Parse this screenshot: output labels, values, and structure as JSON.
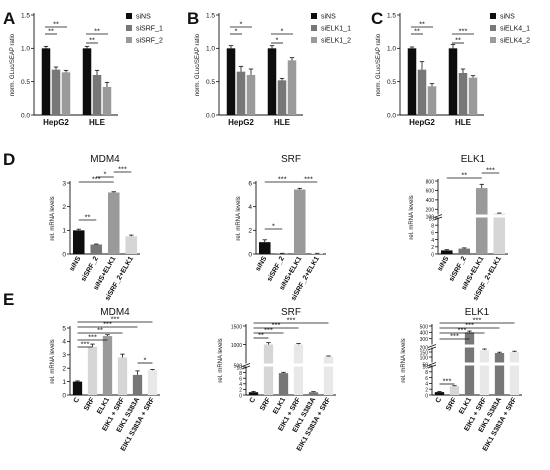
{
  "colors": {
    "black": "#0d0d0d",
    "dark_gray": "#777777",
    "mid_gray": "#9a9a9a",
    "light_gray": "#d6d6d6",
    "lighter_gray": "#e8e8e8"
  },
  "panel_letters": [
    "A",
    "B",
    "C",
    "D",
    "E"
  ],
  "chart_data": [
    {
      "panel": "A",
      "type": "bar",
      "title": "",
      "ylabel": "norm. GLuc/SEAP ratio",
      "categories": [
        "HepG2",
        "HLE"
      ],
      "ylim": [
        0,
        1.5
      ],
      "yticks": [
        "0.0",
        "0.5",
        "1.0",
        "1.5"
      ],
      "legend_position": "right",
      "series": [
        {
          "name": "siNS",
          "values": [
            1.0,
            1.0
          ],
          "err": [
            0.03,
            0.03
          ]
        },
        {
          "name": "siSRF_1",
          "values": [
            0.68,
            0.6
          ],
          "err": [
            0.04,
            0.07
          ]
        },
        {
          "name": "siSRF_2",
          "values": [
            0.64,
            0.42
          ],
          "err": [
            0.03,
            0.07
          ]
        }
      ],
      "significance": [
        "**",
        "**",
        "**",
        "**"
      ]
    },
    {
      "panel": "B",
      "type": "bar",
      "title": "",
      "ylabel": "norm. GLuc/SEAP ratio",
      "categories": [
        "HepG2",
        "HLE"
      ],
      "ylim": [
        0,
        1.5
      ],
      "yticks": [
        "0.0",
        "0.5",
        "1.0",
        "1.5"
      ],
      "legend_position": "right",
      "series": [
        {
          "name": "siNS",
          "values": [
            1.0,
            1.0
          ],
          "err": [
            0.04,
            0.04
          ]
        },
        {
          "name": "siELK1_1",
          "values": [
            0.65,
            0.52
          ],
          "err": [
            0.08,
            0.03
          ]
        },
        {
          "name": "siELK1_2",
          "values": [
            0.6,
            0.82
          ],
          "err": [
            0.09,
            0.04
          ]
        }
      ],
      "significance": [
        "*",
        "*",
        "*",
        "*"
      ]
    },
    {
      "panel": "C",
      "type": "bar",
      "title": "",
      "ylabel": "norm. GLuc/SEAP ratio",
      "categories": [
        "HepG2",
        "HLE"
      ],
      "ylim": [
        0,
        1.5
      ],
      "yticks": [
        "0.0",
        "0.5",
        "1.0",
        "1.5"
      ],
      "legend_position": "right",
      "series": [
        {
          "name": "siNS",
          "values": [
            1.0,
            1.0
          ],
          "err": [
            0.02,
            0.06
          ]
        },
        {
          "name": "siELK4_1",
          "values": [
            0.68,
            0.63
          ],
          "err": [
            0.12,
            0.06
          ]
        },
        {
          "name": "siELK4_2",
          "values": [
            0.43,
            0.56
          ],
          "err": [
            0.04,
            0.03
          ]
        }
      ],
      "significance": [
        "**",
        "**",
        "**",
        "***"
      ]
    },
    {
      "panel": "D",
      "type": "bar",
      "title": "MDM4",
      "ylabel": "rel. mRNA levels",
      "categories": [
        "siNS",
        "siSRF_2",
        "siNS+ELK1",
        "siSRF_2+ELK1"
      ],
      "values": [
        1.0,
        0.4,
        2.6,
        0.75
      ],
      "err": [
        0.05,
        0.02,
        0.03,
        0.05
      ],
      "ylim": [
        0,
        3
      ],
      "yticks": [
        "0",
        "1",
        "2",
        "3"
      ],
      "significance": [
        "**",
        "***",
        "*",
        "***"
      ]
    },
    {
      "panel": "D",
      "type": "bar",
      "title": "SRF",
      "ylabel": "rel. mRNA levels",
      "categories": [
        "siNS",
        "siSRF_2",
        "siNS+ELK1",
        "siSRF_2+ELK1"
      ],
      "values": [
        1.0,
        0.05,
        5.45,
        0.05
      ],
      "err": [
        0.2,
        0.01,
        0.1,
        0.01
      ],
      "ylim": [
        0,
        6
      ],
      "yticks": [
        "0",
        "2",
        "4",
        "6"
      ],
      "significance": [
        "*",
        "***",
        "***"
      ]
    },
    {
      "panel": "D",
      "type": "bar",
      "title": "ELK1",
      "ylabel": "rel. mRNA levels",
      "categories": [
        "siNS",
        "siSRF_2",
        "siNS+ELK1",
        "siSRF_2+ELK1"
      ],
      "values": [
        1.0,
        1.5,
        650,
        110
      ],
      "err": [
        0.2,
        0.2,
        80,
        10
      ],
      "axis_break": true,
      "yticks": [
        "0",
        "2",
        "4",
        "6",
        "8",
        "10",
        "100",
        "200",
        "400",
        "600",
        "800"
      ],
      "significance": [
        "**",
        "***"
      ]
    },
    {
      "panel": "E",
      "type": "bar",
      "title": "MDM4",
      "ylabel": "rel. mRNA levels",
      "categories": [
        "C",
        "SRF",
        "ELK1",
        "EIK1 + SRF",
        "EIK1 S383A",
        "EIK1 S383A + SRF"
      ],
      "values": [
        1.0,
        3.6,
        4.4,
        2.8,
        1.5,
        1.85
      ],
      "err": [
        0.05,
        0.2,
        0.1,
        0.25,
        0.3,
        0.05
      ],
      "ylim": [
        0,
        5
      ],
      "yticks": [
        "0",
        "1",
        "2",
        "3",
        "4",
        "5"
      ],
      "significance": [
        "***",
        "***",
        "**",
        "***",
        "*",
        "***"
      ]
    },
    {
      "panel": "E",
      "type": "bar",
      "title": "SRF",
      "ylabel": "rel. mRNA levels",
      "categories": [
        "C",
        "SRF",
        "ELK1",
        "EIK1 + SRF",
        "EIK1 S383A",
        "EIK1 S383A + SRF"
      ],
      "values": [
        1.0,
        1000,
        7.8,
        1005,
        1.0,
        680
      ],
      "err": [
        0.3,
        50,
        0.3,
        20,
        0.2,
        10
      ],
      "axis_break": true,
      "yticks": [
        "0",
        "2",
        "4",
        "6",
        "8",
        "10",
        "500",
        "1000",
        "1500"
      ],
      "significance": [
        "**",
        "***",
        "***",
        "***"
      ]
    },
    {
      "panel": "E",
      "type": "bar",
      "title": "ELK1",
      "ylabel": "rel. mRNA levels",
      "categories": [
        "C",
        "SRF",
        "ELK1",
        "EIK1 + SRF",
        "EIK1 S383A",
        "EIK1 S383A + SRF"
      ],
      "values": [
        1.0,
        3.0,
        400,
        170,
        140,
        150
      ],
      "err": [
        0.2,
        0.2,
        20,
        10,
        8,
        8
      ],
      "axis_break": true,
      "yticks": [
        "0",
        "2",
        "4",
        "6",
        "8",
        "10",
        "50",
        "100",
        "150",
        "200",
        "300",
        "400",
        "500"
      ],
      "significance": [
        "***",
        "***",
        "***",
        "***",
        "***"
      ]
    }
  ]
}
